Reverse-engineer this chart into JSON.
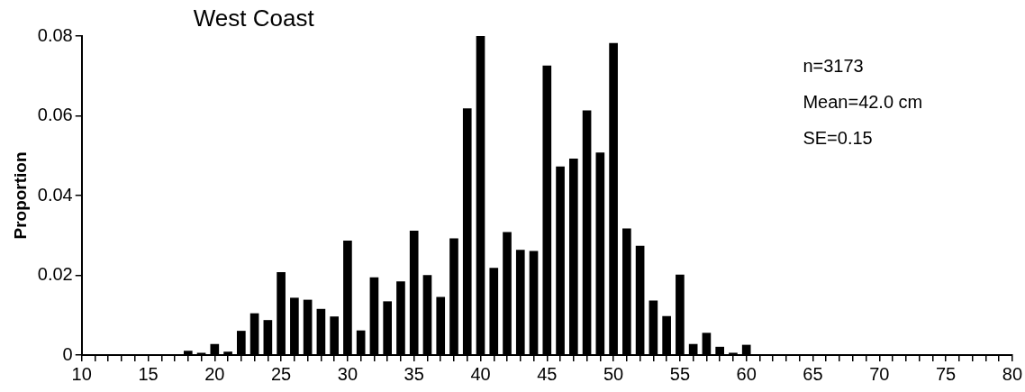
{
  "chart_data": {
    "type": "bar",
    "title": "West Coast",
    "ylabel": "Proportion",
    "color": "#000000",
    "categories": [
      "10",
      null,
      null,
      null,
      null,
      "15",
      null,
      null,
      null,
      null,
      "20",
      null,
      null,
      null,
      null,
      "25",
      null,
      null,
      null,
      null,
      "30",
      null,
      null,
      null,
      null,
      "35",
      null,
      null,
      null,
      null,
      "40",
      null,
      null,
      null,
      null,
      "45",
      null,
      null,
      null,
      null,
      "50",
      null,
      null,
      null,
      null,
      "55",
      null,
      null,
      null,
      null,
      "60",
      null,
      null,
      null,
      null,
      "65",
      null,
      null,
      null,
      null,
      "70",
      null,
      null,
      null,
      null,
      "75",
      null,
      null,
      null,
      null,
      "80"
    ],
    "values": [
      null,
      null,
      null,
      null,
      null,
      null,
      null,
      null,
      0.001,
      0.0005,
      0.0027,
      0.0008,
      0.006,
      0.0104,
      0.0087,
      0.0207,
      0.0143,
      0.0138,
      0.0115,
      0.0096,
      0.0286,
      0.0061,
      0.0194,
      0.0134,
      0.0184,
      0.0311,
      0.02,
      0.0145,
      0.0292,
      0.0618,
      0.08,
      0.0218,
      0.0308,
      0.0263,
      0.026,
      0.0725,
      0.0472,
      0.0492,
      0.0613,
      0.0507,
      0.0782,
      0.0317,
      0.0273,
      0.0136,
      0.0097,
      0.0201,
      0.0027,
      0.0055,
      0.002,
      0.0005,
      0.0025,
      null,
      null,
      null,
      null,
      null,
      null,
      null,
      null,
      null,
      null,
      null,
      null,
      null,
      null,
      null,
      null,
      null,
      null,
      null,
      null
    ],
    "ylim": [
      0,
      0.08
    ],
    "yticks": [
      0,
      0.02,
      0.04,
      0.06,
      0.08
    ],
    "annotations": [
      "n=3173",
      "Mean=42.0 cm",
      "SE=0.15"
    ],
    "grid": false,
    "legend": false
  }
}
